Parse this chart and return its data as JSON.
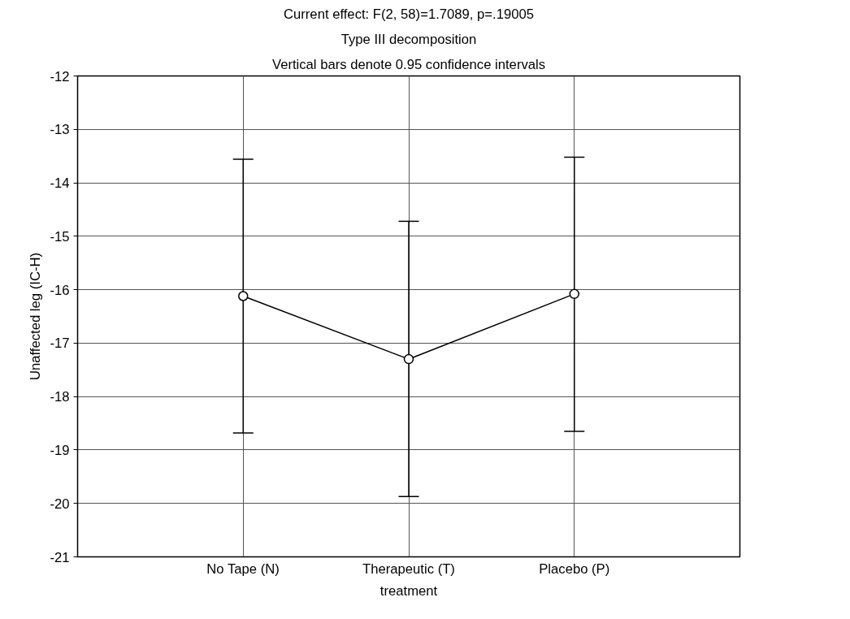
{
  "chart_data": {
    "type": "line",
    "title": "Current effect: F(2, 58)=1.7089, p=.19005",
    "subtitle": "Type III decomposition",
    "annotations": [
      "Vertical bars denote 0.95 confidence intervals"
    ],
    "xlabel": "treatment",
    "ylabel": "Unaffected leg (IC-H)",
    "categories": [
      "No Tape (N)",
      "Therapeutic (T)",
      "Placebo (P)"
    ],
    "series": [
      {
        "color": "#000000",
        "values": [
          -16.12,
          -17.3,
          -16.08
        ],
        "errors": [
          [
            -18.68,
            -13.56
          ],
          [
            -19.87,
            -14.72
          ],
          [
            -18.65,
            -13.52
          ]
        ]
      }
    ],
    "ylim": [
      -21,
      -12
    ],
    "yticks": [
      -21,
      -20,
      -19,
      -18,
      -17,
      -16,
      -15,
      -14,
      -13,
      -12
    ],
    "grid": true,
    "marker": "circle",
    "line_style": "solid"
  }
}
